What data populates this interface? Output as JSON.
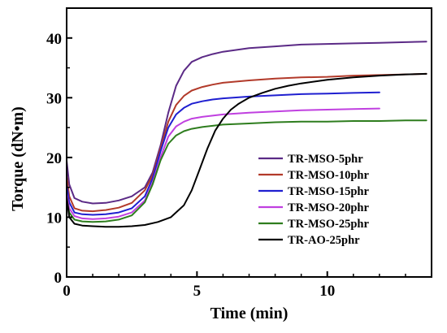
{
  "chart_data": {
    "type": "line",
    "title": "",
    "xlabel": "Time (min)",
    "ylabel": "Torque (dN•m)",
    "xlim": [
      0,
      14
    ],
    "ylim": [
      0,
      45
    ],
    "xticks": [
      0,
      5,
      10
    ],
    "yticks": [
      0,
      10,
      20,
      30,
      40
    ],
    "grid": false,
    "legend": "center-right",
    "series": [
      {
        "name": "TR-MSO-5phr",
        "color": "#5b2a86",
        "x": [
          0,
          0.1,
          0.3,
          0.6,
          1.0,
          1.5,
          2.0,
          2.5,
          3.0,
          3.3,
          3.6,
          3.9,
          4.2,
          4.5,
          4.8,
          5.2,
          5.6,
          6.0,
          6.5,
          7.0,
          8.0,
          9.0,
          10.0,
          11.0,
          12.0,
          13.0,
          13.8
        ],
        "y": [
          19.5,
          15.5,
          13.2,
          12.6,
          12.3,
          12.4,
          12.8,
          13.5,
          15.0,
          17.5,
          22.0,
          27.5,
          32.0,
          34.5,
          36.0,
          36.8,
          37.3,
          37.7,
          38.0,
          38.3,
          38.6,
          38.9,
          39.0,
          39.1,
          39.2,
          39.3,
          39.4
        ]
      },
      {
        "name": "TR-MSO-10phr",
        "color": "#b23a2a",
        "x": [
          0,
          0.1,
          0.3,
          0.6,
          1.0,
          1.5,
          2.0,
          2.5,
          3.0,
          3.3,
          3.6,
          3.9,
          4.2,
          4.5,
          4.8,
          5.2,
          5.6,
          6.0,
          7.0,
          8.0,
          9.0,
          10.0,
          11.0,
          12.0,
          13.0,
          13.8
        ],
        "y": [
          17.0,
          13.5,
          11.5,
          11.1,
          11.0,
          11.2,
          11.6,
          12.4,
          14.5,
          17.0,
          21.5,
          26.0,
          28.8,
          30.3,
          31.2,
          31.8,
          32.2,
          32.5,
          32.9,
          33.2,
          33.4,
          33.5,
          33.7,
          33.8,
          33.9,
          34.0
        ]
      },
      {
        "name": "TR-MSO-15phr",
        "color": "#1f1fd0",
        "x": [
          0,
          0.1,
          0.3,
          0.6,
          1.0,
          1.5,
          2.0,
          2.5,
          3.0,
          3.3,
          3.6,
          3.9,
          4.2,
          4.5,
          4.8,
          5.2,
          5.6,
          6.0,
          7.0,
          8.0,
          9.0,
          10.0,
          11.0,
          12.0
        ],
        "y": [
          15.5,
          12.5,
          10.8,
          10.5,
          10.4,
          10.5,
          10.8,
          11.5,
          13.5,
          16.5,
          21.0,
          25.0,
          27.2,
          28.3,
          29.0,
          29.4,
          29.7,
          29.9,
          30.2,
          30.4,
          30.6,
          30.7,
          30.8,
          30.9
        ]
      },
      {
        "name": "TR-MSO-20phr",
        "color": "#c040e0",
        "x": [
          0,
          0.1,
          0.3,
          0.6,
          1.0,
          1.5,
          2.0,
          2.5,
          3.0,
          3.3,
          3.6,
          3.9,
          4.2,
          4.5,
          4.8,
          5.2,
          5.6,
          6.0,
          7.0,
          8.0,
          9.0,
          10.0,
          11.0,
          12.0
        ],
        "y": [
          14.0,
          11.5,
          10.2,
          9.8,
          9.7,
          9.8,
          10.1,
          10.8,
          12.8,
          15.8,
          20.0,
          23.5,
          25.2,
          26.0,
          26.5,
          26.8,
          27.0,
          27.2,
          27.5,
          27.7,
          27.9,
          28.0,
          28.1,
          28.2
        ]
      },
      {
        "name": "TR-MSO-25phr",
        "color": "#2e7d1e",
        "x": [
          0,
          0.1,
          0.3,
          0.6,
          1.0,
          1.5,
          2.0,
          2.5,
          3.0,
          3.3,
          3.6,
          3.9,
          4.2,
          4.5,
          4.8,
          5.2,
          5.6,
          6.0,
          7.0,
          8.0,
          9.0,
          10.0,
          11.0,
          12.0,
          13.0,
          13.8
        ],
        "y": [
          13.0,
          10.8,
          9.6,
          9.3,
          9.2,
          9.3,
          9.6,
          10.3,
          12.5,
          15.5,
          19.5,
          22.3,
          23.7,
          24.4,
          24.8,
          25.1,
          25.3,
          25.5,
          25.7,
          25.9,
          26.0,
          26.0,
          26.1,
          26.1,
          26.2,
          26.2
        ]
      },
      {
        "name": "TR-AO-25phr",
        "color": "#000000",
        "x": [
          0,
          0.1,
          0.3,
          0.6,
          1.0,
          1.5,
          2.0,
          2.5,
          3.0,
          3.5,
          4.0,
          4.5,
          4.8,
          5.1,
          5.4,
          5.7,
          6.0,
          6.3,
          6.6,
          7.0,
          7.5,
          8.0,
          8.5,
          9.0,
          10.0,
          11.0,
          12.0,
          13.0,
          13.8
        ],
        "y": [
          13.5,
          10.0,
          8.9,
          8.6,
          8.5,
          8.4,
          8.4,
          8.5,
          8.7,
          9.2,
          10.0,
          12.0,
          14.5,
          18.0,
          21.5,
          24.5,
          26.5,
          28.0,
          29.0,
          30.0,
          30.8,
          31.5,
          32.0,
          32.4,
          33.0,
          33.4,
          33.7,
          33.9,
          34.0
        ]
      }
    ]
  }
}
